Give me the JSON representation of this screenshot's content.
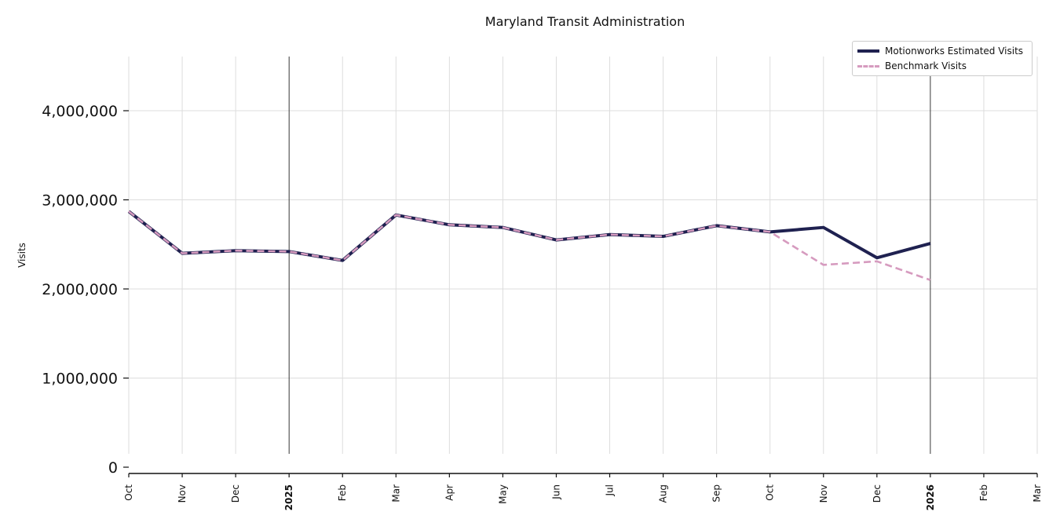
{
  "chart_data": {
    "type": "line",
    "title": "Maryland Transit Administration",
    "ylabel": "Visits",
    "ylim": [
      0,
      4600000
    ],
    "y_ticks": [
      0,
      1000000,
      2000000,
      3000000,
      4000000
    ],
    "y_tick_labels": [
      "0",
      "1,000,000",
      "2,000,000",
      "3,000,000",
      "4,000,000"
    ],
    "x_ticks": [
      "Oct",
      "Nov",
      "Dec",
      "2025",
      "Feb",
      "Mar",
      "Apr",
      "May",
      "Jun",
      "Jul",
      "Aug",
      "Sep",
      "Oct",
      "Nov",
      "Dec",
      "2026",
      "Feb",
      "Mar"
    ],
    "x_year_ticks": [
      "2025",
      "2026"
    ],
    "x_dates": [
      "2024-10",
      "2024-11",
      "2024-12",
      "2025-01",
      "2025-02",
      "2025-03",
      "2025-04",
      "2025-05",
      "2025-06",
      "2025-07",
      "2025-08",
      "2025-09",
      "2025-10",
      "2025-11",
      "2025-12",
      "2026-01",
      "2026-02",
      "2026-03"
    ],
    "grid": true,
    "legend_position": "top-right",
    "series": [
      {
        "name": "Motionworks Estimated Visits",
        "color": "#1f2150",
        "style": "solid",
        "x": [
          "2024-10",
          "2024-11",
          "2024-12",
          "2025-01",
          "2025-02",
          "2025-03",
          "2025-04",
          "2025-05",
          "2025-06",
          "2025-07",
          "2025-08",
          "2025-09",
          "2025-10",
          "2025-11",
          "2025-12",
          "2026-01"
        ],
        "values": [
          2870000,
          2400000,
          2430000,
          2420000,
          2320000,
          2830000,
          2720000,
          2690000,
          2550000,
          2610000,
          2590000,
          2710000,
          2640000,
          2690000,
          2350000,
          2510000
        ]
      },
      {
        "name": "Benchmark Visits",
        "color": "#d69bbf",
        "style": "dashed",
        "x": [
          "2024-10",
          "2024-11",
          "2024-12",
          "2025-01",
          "2025-02",
          "2025-03",
          "2025-04",
          "2025-05",
          "2025-06",
          "2025-07",
          "2025-08",
          "2025-09",
          "2025-10",
          "2025-11",
          "2025-12",
          "2026-01"
        ],
        "values": [
          2870000,
          2400000,
          2430000,
          2420000,
          2320000,
          2830000,
          2720000,
          2690000,
          2550000,
          2610000,
          2590000,
          2710000,
          2640000,
          2270000,
          2310000,
          2100000
        ]
      }
    ]
  }
}
